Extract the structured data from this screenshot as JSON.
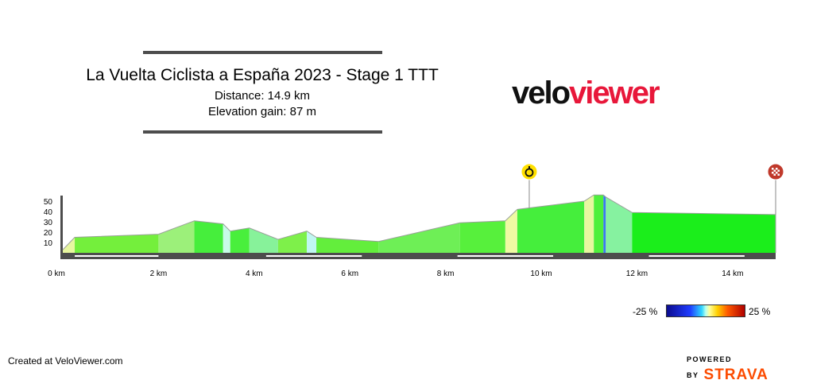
{
  "header": {
    "title": "La Vuelta Ciclista a España 2023 - Stage 1 TTT",
    "distance_text": "Distance: 14.9 km",
    "elevation_text": "Elevation gain: 87 m"
  },
  "brand": {
    "logo_part1": "velo",
    "logo_part2": "viewer",
    "accent": "#e8173a"
  },
  "legend": {
    "min_label": "-25 %",
    "max_label": "25 %"
  },
  "footer": {
    "created": "Created at VeloViewer.com",
    "powered": "POWERED BY",
    "strava": "STRAVA",
    "strava_color": "#fc4c02"
  },
  "markers": [
    {
      "name": "intermediate-time-check",
      "km": 9.75,
      "icon": "stopwatch-icon",
      "color": "#ffe000"
    },
    {
      "name": "finish",
      "km": 14.9,
      "icon": "checkered-flag-icon",
      "color": "#c0392b"
    }
  ],
  "chart_data": {
    "type": "area",
    "title": "La Vuelta Ciclista a España 2023 - Stage 1 TTT",
    "xlabel": "",
    "ylabel": "",
    "x_unit": "km",
    "xlim": [
      0,
      14.9
    ],
    "ylim": [
      0,
      55
    ],
    "x_ticks": [
      0,
      2,
      4,
      6,
      8,
      10,
      12,
      14
    ],
    "x_tick_labels": [
      "0 km",
      "2 km",
      "4 km",
      "6 km",
      "8 km",
      "10 km",
      "12 km",
      "14 km"
    ],
    "y_ticks": [
      10,
      20,
      30,
      40,
      50
    ],
    "y_tick_labels": [
      "10",
      "20",
      "30",
      "40",
      "50"
    ],
    "profile": [
      [
        0.0,
        3
      ],
      [
        0.25,
        15
      ],
      [
        2.0,
        18
      ],
      [
        2.75,
        31
      ],
      [
        3.35,
        28
      ],
      [
        3.5,
        21
      ],
      [
        3.9,
        24
      ],
      [
        4.5,
        13
      ],
      [
        5.1,
        21
      ],
      [
        5.3,
        15
      ],
      [
        6.6,
        11
      ],
      [
        8.3,
        29
      ],
      [
        9.25,
        31
      ],
      [
        9.5,
        42
      ],
      [
        10.9,
        50
      ],
      [
        11.1,
        56
      ],
      [
        11.3,
        56
      ],
      [
        11.35,
        54
      ],
      [
        11.9,
        39
      ],
      [
        14.9,
        37
      ]
    ],
    "segment_colors": [
      "#e8f7a0",
      "#74ef3c",
      "#9cf07a",
      "#46ee3c",
      "#c8fbe8",
      "#49ef3c",
      "#87f29a",
      "#7ef04a",
      "#bff7f2",
      "#63ee3c",
      "#6eef56",
      "#57f03c",
      "#eefaa3",
      "#45ee3c",
      "#e8f7a0",
      "#4ef03c",
      "#3a7af0",
      "#86f2a0",
      "#1bee1b"
    ]
  }
}
